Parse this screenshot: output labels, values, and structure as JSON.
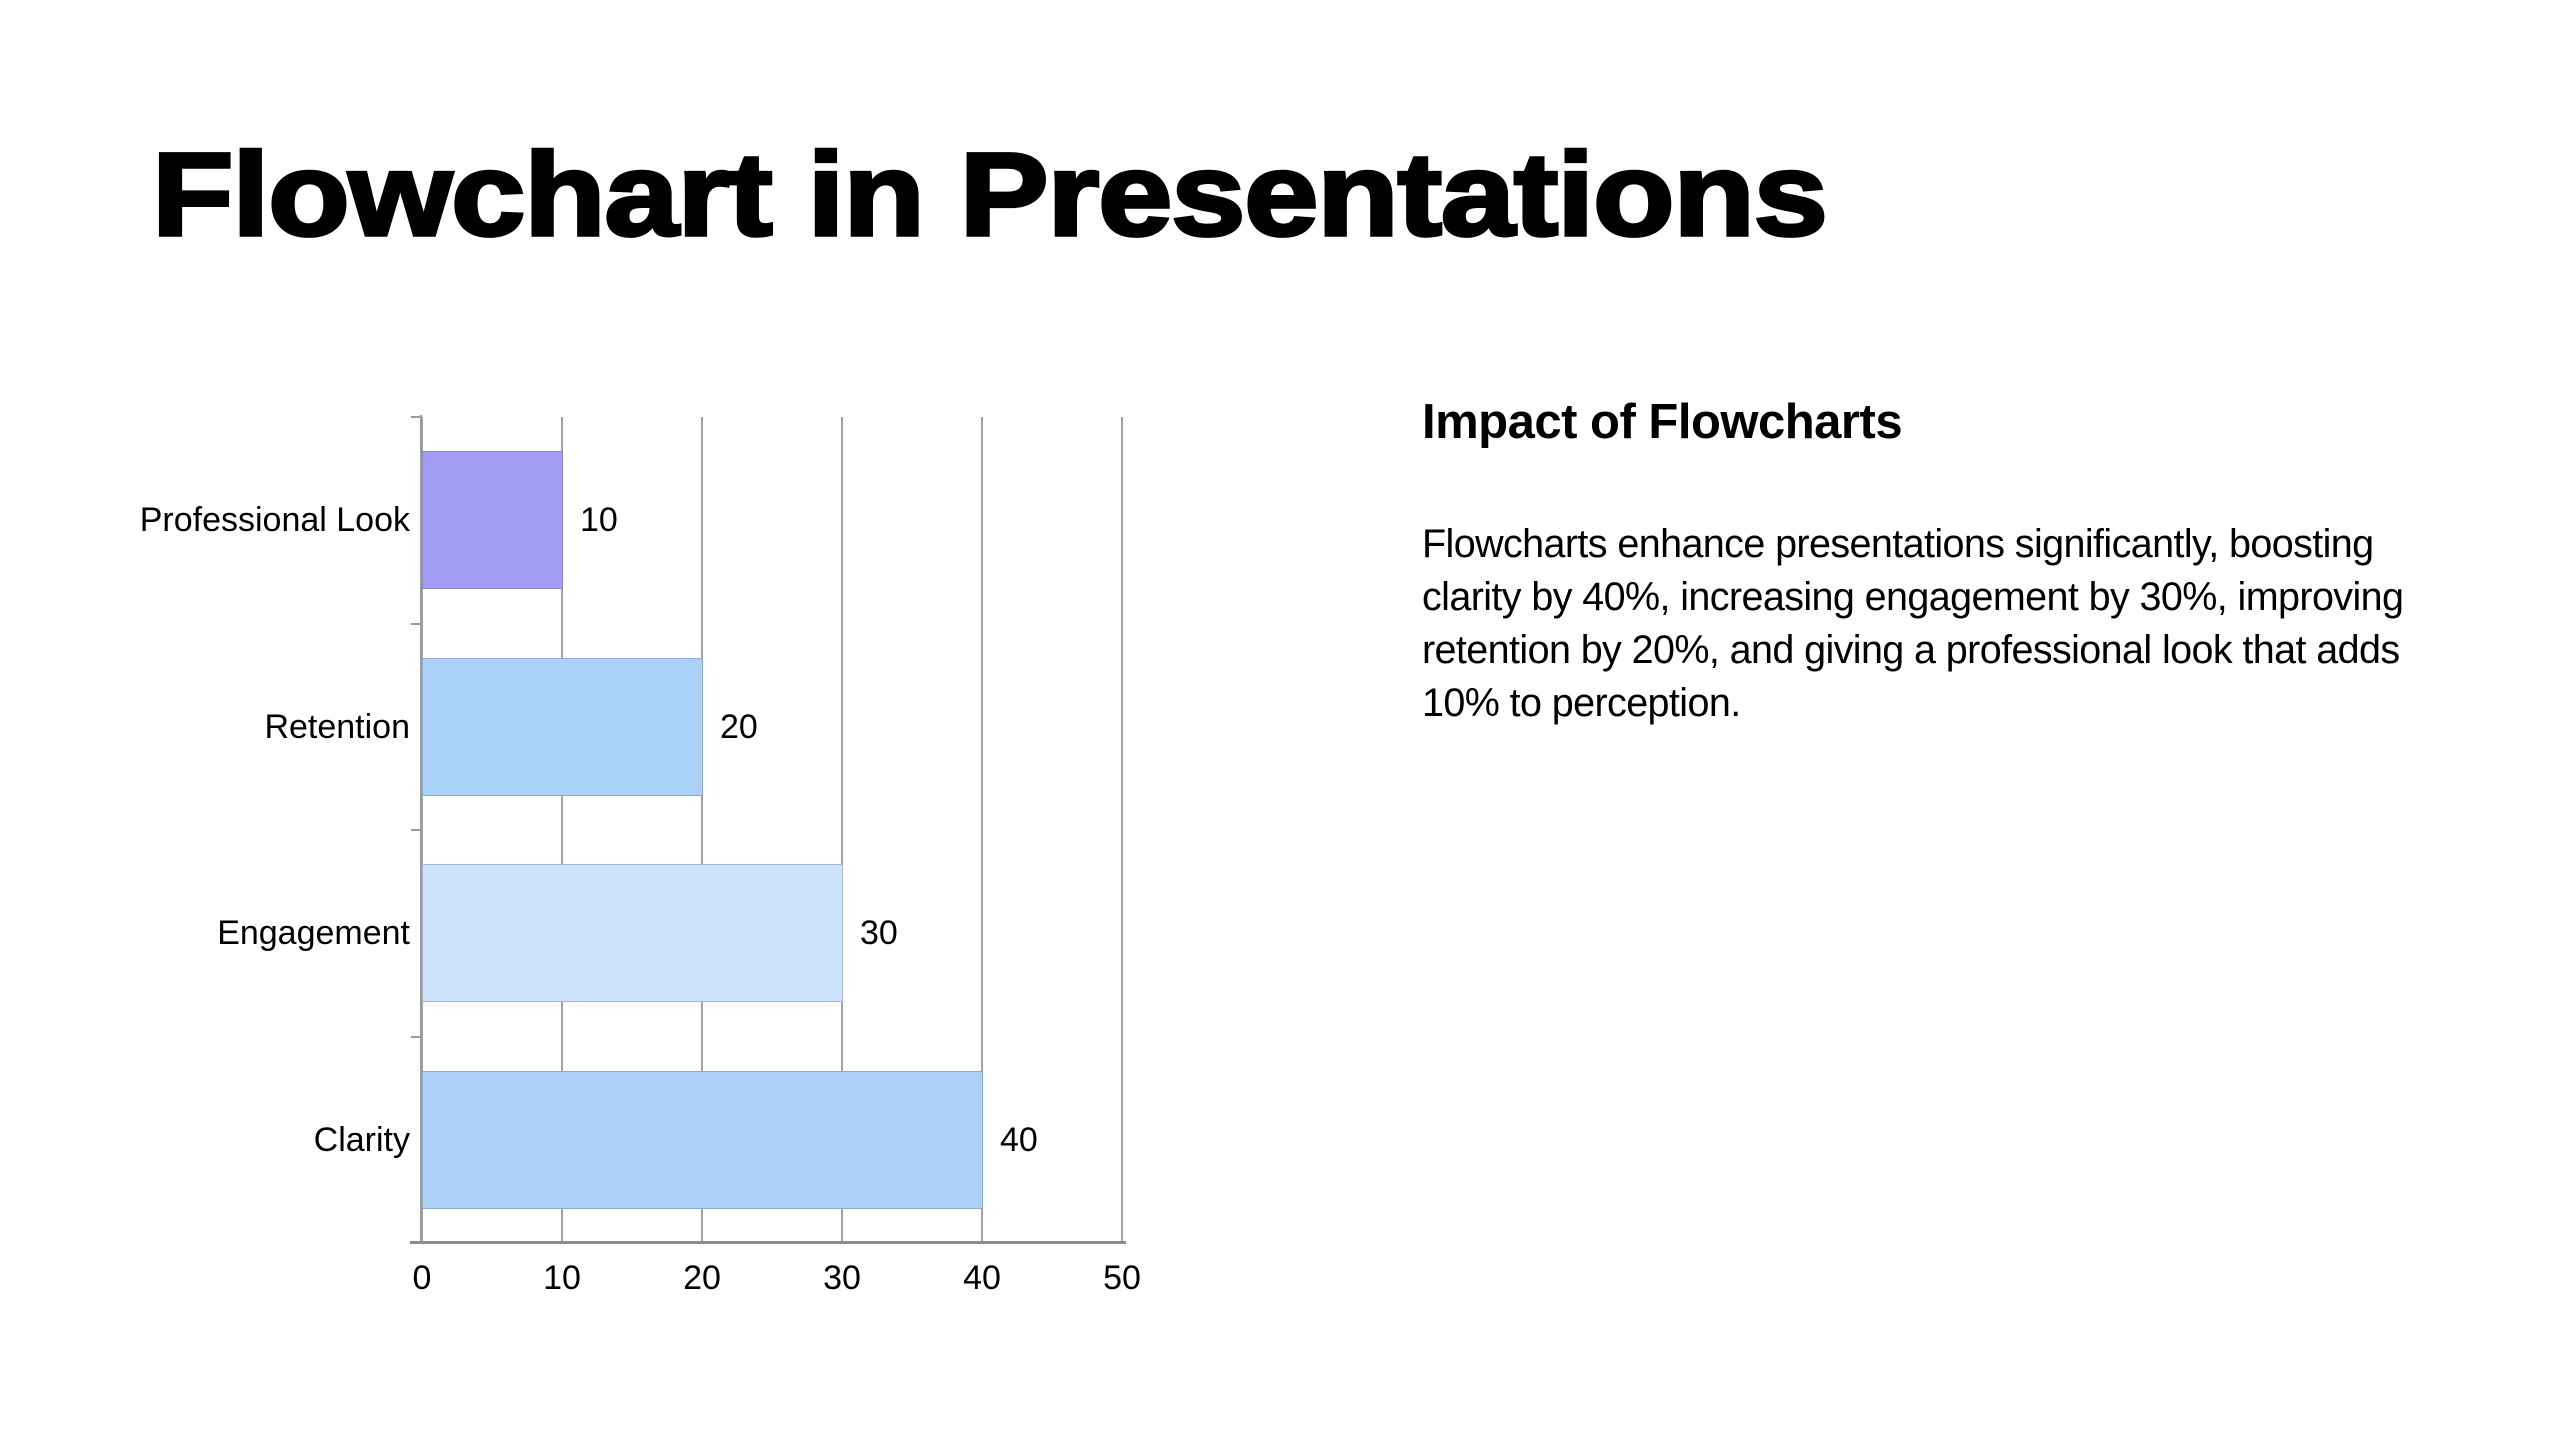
{
  "slide": {
    "title": "Flowchart in Presentations",
    "background_color": "#ffffff"
  },
  "text_panel": {
    "heading": "Impact of Flowcharts",
    "body": "Flowcharts enhance presentations significantly, boosting clarity by 40%, increasing engagement by 30%, improving retention by 20%, and giving a professional look that adds 10% to perception."
  },
  "chart_data": {
    "type": "bar",
    "orientation": "horizontal",
    "title": "",
    "xlabel": "",
    "ylabel": "",
    "categories": [
      "Professional Look",
      "Retention",
      "Engagement",
      "Clarity"
    ],
    "values": [
      10,
      20,
      30,
      40
    ],
    "value_labels": [
      "10",
      "20",
      "30",
      "40"
    ],
    "bar_colors": [
      "#a49df5",
      "#aad2f8",
      "#cce3fb",
      "#abd1f7"
    ],
    "x_ticks": [
      0,
      10,
      20,
      30,
      40,
      50
    ],
    "xlim": [
      0,
      50
    ],
    "grid": true,
    "gridline_color": "#a2a2a2",
    "axis_color": "#8c8c8c",
    "text_color": "#000000",
    "legend": "none"
  }
}
